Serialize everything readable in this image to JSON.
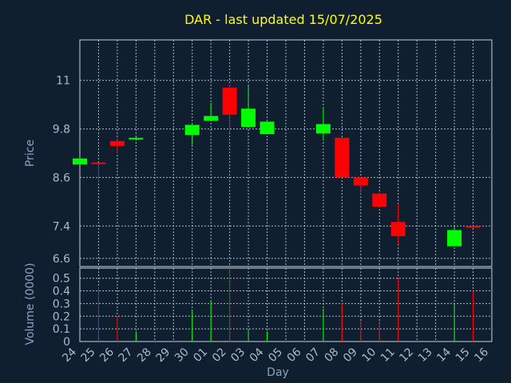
{
  "chart_data": {
    "type": "candlestick",
    "title": "DAR - last updated 15/07/2025",
    "xlabel": "Day",
    "ylabel_price": "Price",
    "ylabel_volume": "Volume (0000)",
    "x_ticks": [
      "24",
      "25",
      "26",
      "27",
      "28",
      "29",
      "30",
      "01",
      "02",
      "03",
      "04",
      "05",
      "06",
      "07",
      "08",
      "09",
      "10",
      "11",
      "12",
      "13",
      "14",
      "15",
      "16"
    ],
    "price_ticks": [
      "6.6",
      "7.4",
      "8.6",
      "9.8",
      "11"
    ],
    "volume_ticks": [
      "0",
      "0.1",
      "0.2",
      "0.3",
      "0.4",
      "0.5"
    ],
    "price_range": [
      6.4,
      12.0
    ],
    "volume_range": [
      0,
      0.58
    ],
    "grid": true,
    "colors": {
      "up": "#00ff00",
      "down": "#ff0000",
      "title": "#ffff00",
      "background": "#0f1f30"
    },
    "candles": [
      {
        "x": "24",
        "open": 8.92,
        "high": 9.1,
        "low": 8.92,
        "close": 9.07,
        "volume": 0.0
      },
      {
        "x": "25",
        "open": 8.97,
        "high": 8.97,
        "low": 8.5,
        "close": 8.96,
        "volume": 0.43
      },
      {
        "x": "26",
        "open": 9.5,
        "high": 9.55,
        "low": 9.2,
        "close": 9.38,
        "volume": 0.2
      },
      {
        "x": "27",
        "open": 9.54,
        "high": 9.62,
        "low": 9.56,
        "close": 9.58,
        "volume": 0.08
      },
      {
        "x": "30",
        "open": 9.65,
        "high": 9.9,
        "low": 9.4,
        "close": 9.9,
        "volume": 0.24
      },
      {
        "x": "01",
        "open": 10.0,
        "high": 10.44,
        "low": 10.02,
        "close": 10.12,
        "volume": 0.32
      },
      {
        "x": "02",
        "open": 10.82,
        "high": 10.9,
        "low": 9.7,
        "close": 10.15,
        "volume": 0.58
      },
      {
        "x": "03",
        "open": 9.85,
        "high": 10.9,
        "low": 9.85,
        "close": 10.3,
        "volume": 0.1
      },
      {
        "x": "04",
        "open": 9.67,
        "high": 9.98,
        "low": 9.67,
        "close": 9.98,
        "volume": 0.08
      },
      {
        "x": "07",
        "open": 9.69,
        "high": 10.3,
        "low": 9.56,
        "close": 9.92,
        "volume": 0.26
      },
      {
        "x": "08",
        "open": 9.58,
        "high": 9.58,
        "low": 8.6,
        "close": 8.6,
        "volume": 0.3
      },
      {
        "x": "09",
        "open": 8.6,
        "high": 8.6,
        "low": 8.2,
        "close": 8.4,
        "volume": 0.16
      },
      {
        "x": "10",
        "open": 8.2,
        "high": 8.2,
        "low": 7.85,
        "close": 7.88,
        "volume": 0.16
      },
      {
        "x": "11",
        "open": 7.5,
        "high": 7.95,
        "low": 6.95,
        "close": 7.15,
        "volume": 0.5
      },
      {
        "x": "14",
        "open": 6.9,
        "high": 7.4,
        "low": 6.9,
        "close": 7.3,
        "volume": 0.29
      },
      {
        "x": "15",
        "open": 7.4,
        "high": 7.4,
        "low": 7.38,
        "close": 7.39,
        "volume": 0.4
      }
    ]
  }
}
